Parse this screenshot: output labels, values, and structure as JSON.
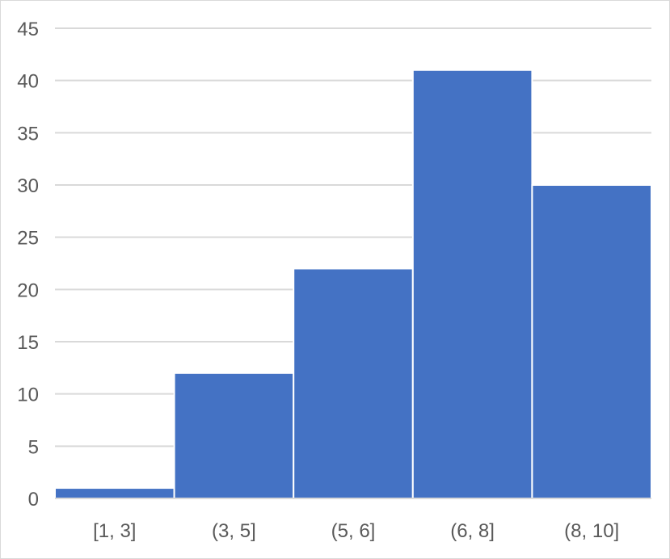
{
  "chart_data": {
    "type": "bar",
    "title": "",
    "xlabel": "",
    "ylabel": "",
    "categories": [
      "[1, 3]",
      "(3, 5]",
      "(5, 6]",
      "(6, 8]",
      "(8, 10]"
    ],
    "values": [
      1,
      12,
      22,
      41,
      30
    ],
    "ylim": [
      0,
      45
    ],
    "yticks": [
      "0",
      "5",
      "10",
      "15",
      "20",
      "25",
      "30",
      "35",
      "40",
      "45"
    ],
    "grid": true,
    "legend": "none",
    "bar_color": "#4472C4",
    "grid_color": "#d9d9d9",
    "text_color": "#595959"
  }
}
